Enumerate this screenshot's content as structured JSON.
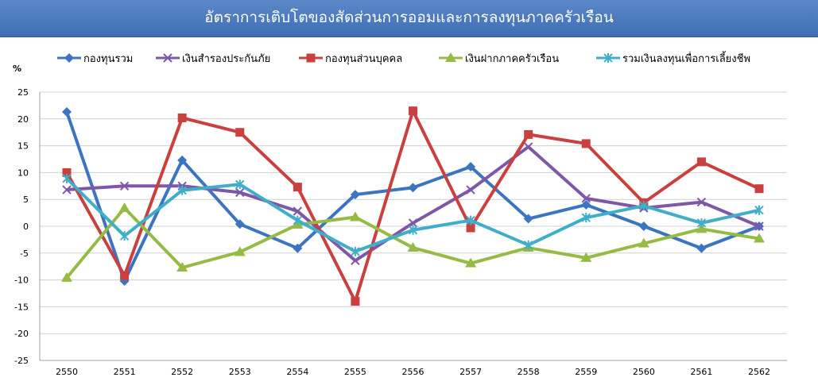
{
  "chart_data": {
    "type": "line",
    "title": "อัตราการเติบโตของสัดส่วนการออมและการลงทุนภาคครัวเรือน",
    "ylabel": "%",
    "xlabel": "",
    "ylim": [
      -25,
      25
    ],
    "ytick_step": 5,
    "grid": true,
    "legend_position": "top",
    "categories": [
      "2550",
      "2551",
      "2552",
      "2553",
      "2554",
      "2555",
      "2556",
      "2557",
      "2558",
      "2559",
      "2560",
      "2561",
      "2562"
    ],
    "series": [
      {
        "name": "กองทุนรวม",
        "color": "#3b74c0",
        "marker": "diamond",
        "values": [
          21.3,
          -10.2,
          12.3,
          0.4,
          -4.1,
          5.9,
          7.2,
          11.1,
          1.4,
          4.0,
          0.0,
          -4.1,
          0.0
        ]
      },
      {
        "name": "เงินสำรองประกันภัย",
        "color": "#7e57a8",
        "marker": "x",
        "values": [
          6.8,
          7.5,
          7.5,
          6.3,
          2.8,
          -6.4,
          0.6,
          6.8,
          14.8,
          5.2,
          3.4,
          4.5,
          0.0
        ]
      },
      {
        "name": "กองทุนส่วนบุคคล",
        "color": "#c9403f",
        "marker": "square",
        "values": [
          10.0,
          -9.2,
          20.2,
          17.5,
          7.3,
          -14.0,
          21.5,
          -0.3,
          17.1,
          15.4,
          4.4,
          12.0,
          7.0
        ]
      },
      {
        "name": "เงินฝากภาคครัวเรือน",
        "color": "#96bb45",
        "marker": "triangle",
        "values": [
          -9.6,
          3.4,
          -7.7,
          -4.8,
          0.3,
          1.7,
          -4.0,
          -6.9,
          -4.0,
          -5.9,
          -3.2,
          -0.5,
          -2.3
        ]
      },
      {
        "name": "รวมเงินลงทุนเพื่อการเลี้ยงชีพ",
        "color": "#40aec8",
        "marker": "asterisk",
        "values": [
          8.9,
          -1.8,
          6.7,
          7.8,
          1.1,
          -4.7,
          -0.7,
          1.1,
          -3.5,
          1.6,
          3.8,
          0.6,
          3.0
        ]
      }
    ]
  }
}
